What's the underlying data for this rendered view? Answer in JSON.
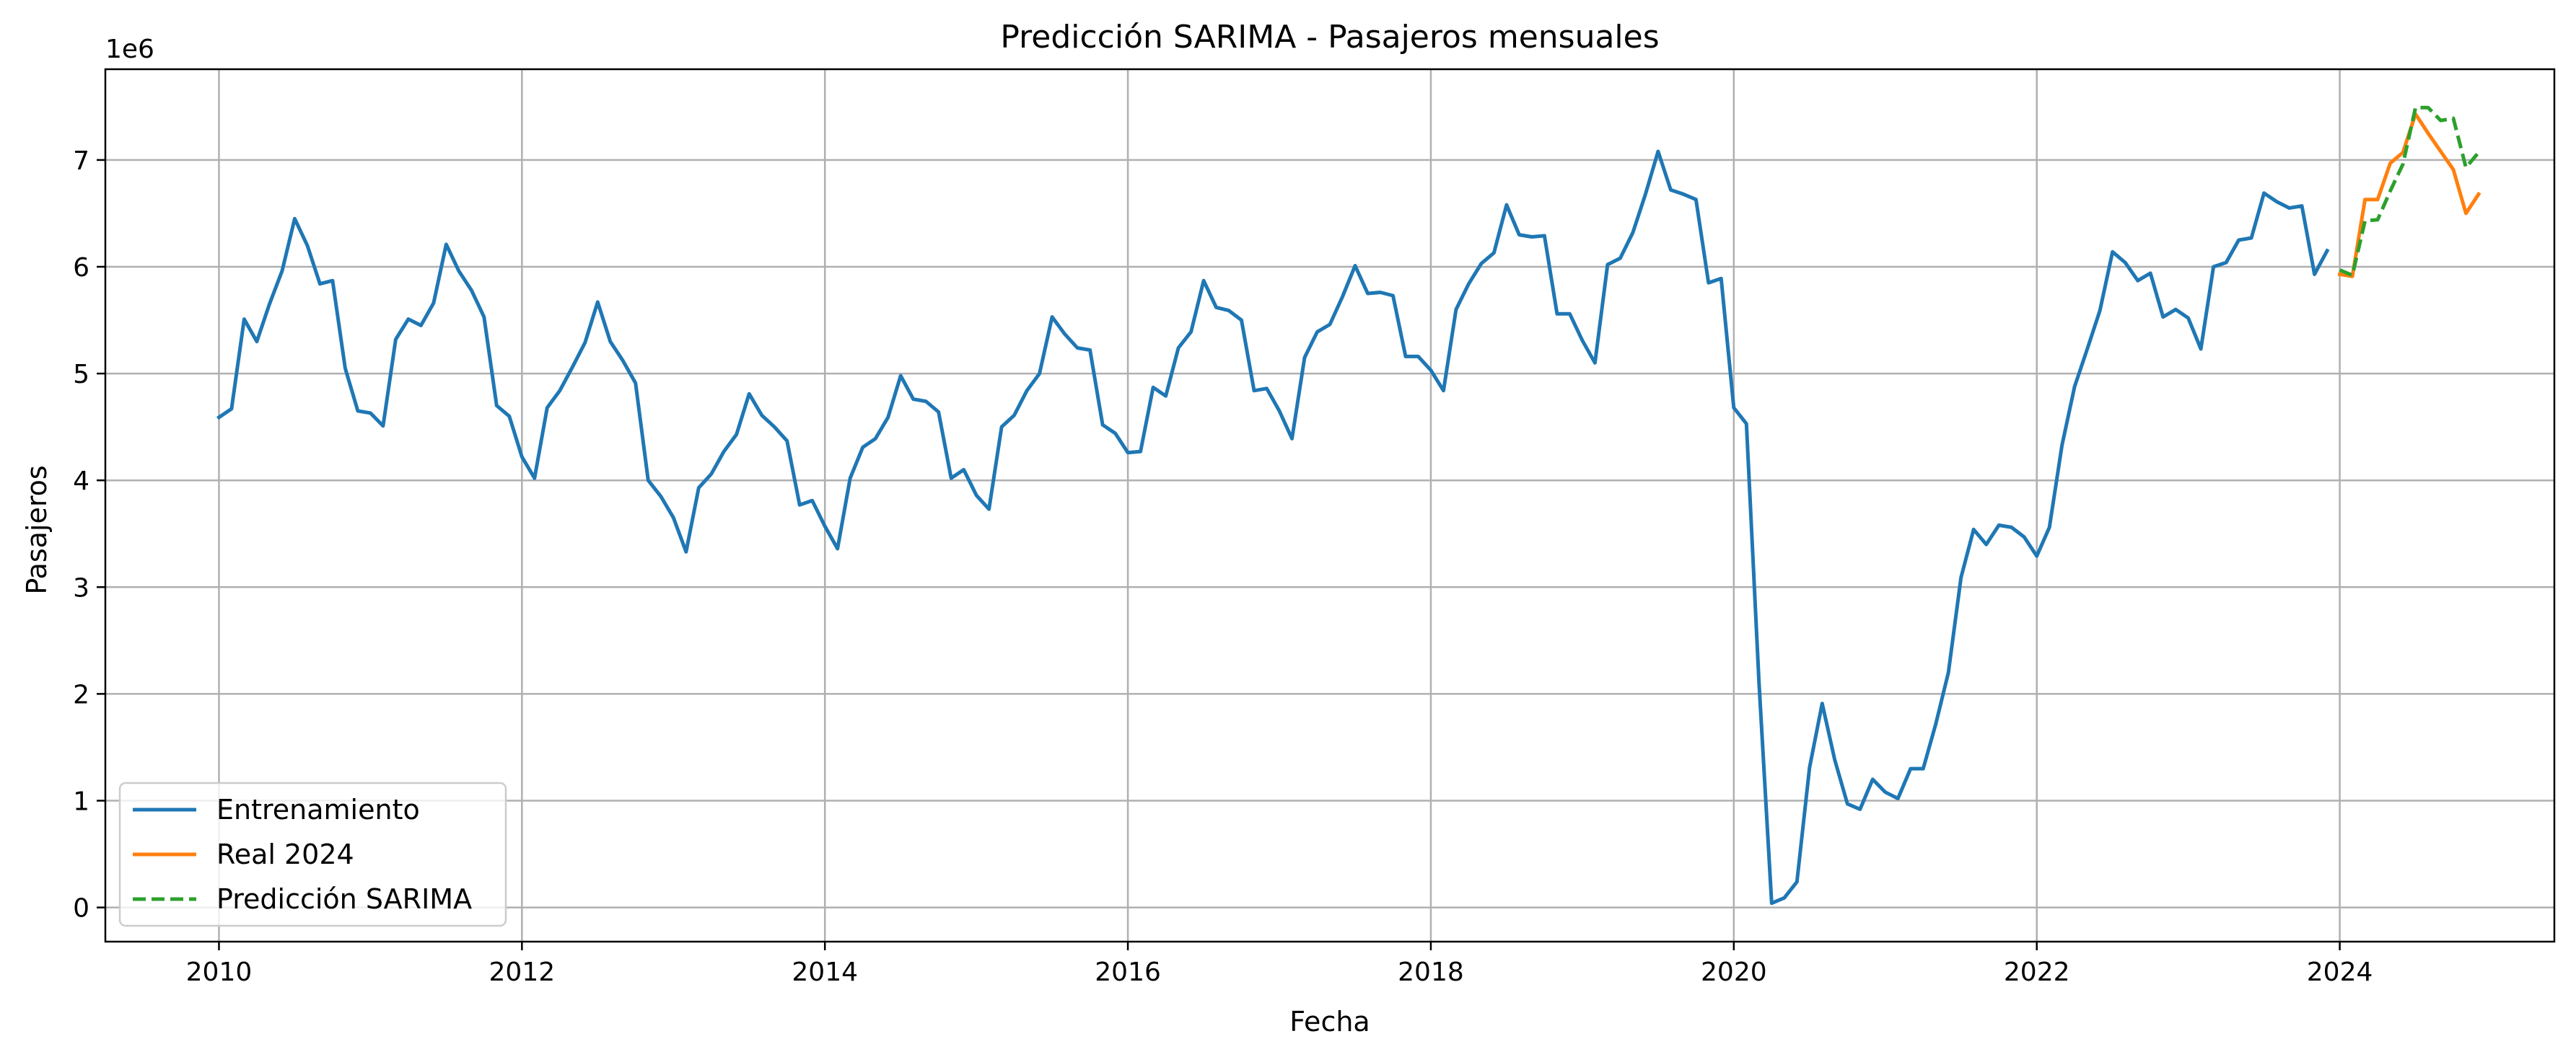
{
  "chart_data": {
    "type": "line",
    "title": "Predicción SARIMA - Pasajeros mensuales",
    "xlabel": "Fecha",
    "ylabel": "Pasajeros",
    "y_offset_label": "1e6",
    "xlim": [
      "2009-04",
      "2025-06"
    ],
    "ylim": [
      -0.32,
      7.85
    ],
    "x_ticks": [
      "2010",
      "2012",
      "2014",
      "2016",
      "2018",
      "2020",
      "2022",
      "2024"
    ],
    "y_ticks": [
      "0",
      "1",
      "2",
      "3",
      "4",
      "5",
      "6",
      "7"
    ],
    "grid": true,
    "legend_position": "lower left",
    "series": [
      {
        "name": "Entrenamiento",
        "color": "#1f77b4",
        "style": "solid",
        "start": "2010-01",
        "values": [
          4.59,
          4.67,
          5.51,
          5.3,
          5.65,
          5.96,
          6.45,
          6.2,
          5.84,
          5.87,
          5.05,
          4.65,
          4.63,
          4.51,
          5.32,
          5.51,
          5.45,
          5.66,
          6.21,
          5.96,
          5.78,
          5.53,
          4.7,
          4.6,
          4.22,
          4.02,
          4.68,
          4.84,
          5.06,
          5.29,
          5.67,
          5.3,
          5.12,
          4.91,
          4.0,
          3.85,
          3.65,
          3.33,
          3.93,
          4.06,
          4.27,
          4.43,
          4.81,
          4.61,
          4.5,
          4.37,
          3.77,
          3.81,
          3.57,
          3.36,
          4.02,
          4.31,
          4.39,
          4.59,
          4.98,
          4.76,
          4.74,
          4.64,
          4.02,
          4.1,
          3.86,
          3.73,
          4.5,
          4.61,
          4.84,
          5.0,
          5.53,
          5.37,
          5.24,
          5.22,
          4.52,
          4.44,
          4.26,
          4.27,
          4.87,
          4.79,
          5.24,
          5.39,
          5.87,
          5.62,
          5.59,
          5.5,
          4.84,
          4.86,
          4.65,
          4.39,
          5.15,
          5.39,
          5.46,
          5.72,
          6.01,
          5.75,
          5.76,
          5.73,
          5.16,
          5.16,
          5.03,
          4.84,
          5.6,
          5.84,
          6.03,
          6.13,
          6.58,
          6.3,
          6.28,
          6.29,
          5.56,
          5.56,
          5.31,
          5.1,
          6.02,
          6.08,
          6.32,
          6.68,
          7.08,
          6.72,
          6.68,
          6.63,
          5.85,
          5.89,
          4.68,
          4.53,
          2.1,
          0.04,
          0.09,
          0.24,
          1.31,
          1.91,
          1.38,
          0.97,
          0.92,
          1.2,
          1.08,
          1.02,
          1.3,
          1.3,
          1.72,
          2.2,
          3.09,
          3.54,
          3.4,
          3.58,
          3.56,
          3.47,
          3.29,
          3.56,
          4.33,
          4.88,
          5.23,
          5.59,
          6.14,
          6.04,
          5.87,
          5.94,
          5.53,
          5.6,
          5.52,
          5.23,
          6.0,
          6.04,
          6.25,
          6.27,
          6.69,
          6.61,
          6.55,
          6.57,
          5.93,
          6.15
        ]
      },
      {
        "name": "Real 2024",
        "color": "#ff7f0e",
        "style": "solid",
        "start": "2024-01",
        "values": [
          5.93,
          5.91,
          6.63,
          6.63,
          6.97,
          7.07,
          7.43,
          7.25,
          7.08,
          6.91,
          6.5,
          6.68
        ]
      },
      {
        "name": "Predicción SARIMA",
        "color": "#2ca02c",
        "style": "dashed",
        "start": "2024-01",
        "values": [
          5.97,
          5.92,
          6.43,
          6.44,
          6.71,
          6.96,
          7.49,
          7.49,
          7.37,
          7.39,
          6.93,
          7.07
        ]
      }
    ]
  }
}
